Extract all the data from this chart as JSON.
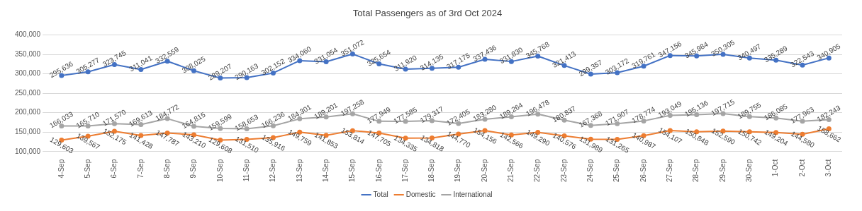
{
  "chart_data": {
    "type": "line",
    "title": "Total Passengers as of 3rd Oct 2024",
    "categories": [
      "4-Sep",
      "5-Sep",
      "6-Sep",
      "7-Sep",
      "8-Sep",
      "9-Sep",
      "10-Sep",
      "11-Sep",
      "12-Sep",
      "13-Sep",
      "14-Sep",
      "15-Sep",
      "16-Sep",
      "17-Sep",
      "18-Sep",
      "19-Sep",
      "20-Sep",
      "21-Sep",
      "22-Sep",
      "23-Sep",
      "24-Sep",
      "25-Sep",
      "26-Sep",
      "27-Sep",
      "28-Sep",
      "29-Sep",
      "30-Sep",
      "1-Oct",
      "2-Oct",
      "3-Oct"
    ],
    "series": [
      {
        "name": "Total",
        "color": "#4472c4",
        "values": [
          295636,
          305277,
          323745,
          311041,
          332559,
          308025,
          289207,
          290163,
          302152,
          334060,
          331054,
          351072,
          325654,
          311920,
          314135,
          317175,
          337436,
          331830,
          345768,
          321413,
          299357,
          303172,
          319761,
          347156,
          345984,
          350305,
          340497,
          335289,
          322543,
          340905
        ],
        "value_labels": [
          "295,636",
          "305,277",
          "323,745",
          "311,041",
          "332,559",
          "308,025",
          "289,207",
          "290,163",
          "302,152",
          "334,060",
          "331,054",
          "351,072",
          "325,654",
          "311,920",
          "314,135",
          "317,175",
          "337,436",
          "331,830",
          "345,768",
          "321,413",
          "299,357",
          "303,172",
          "319,761",
          "347,156",
          "345,984",
          "350,305",
          "340,497",
          "335,289",
          "322,543",
          "340,905"
        ]
      },
      {
        "name": "Domestic",
        "color": "#ed7d31",
        "values": [
          129603,
          139567,
          152175,
          141428,
          147787,
          143210,
          129608,
          131510,
          135916,
          149759,
          141853,
          153814,
          147705,
          134335,
          134818,
          144770,
          154156,
          142566,
          149290,
          140576,
          131989,
          131265,
          140987,
          154107,
          150848,
          152590,
          150742,
          149204,
          144580,
          158662
        ],
        "value_labels": [
          "129,603",
          "139,567",
          "152,175",
          "141,428",
          "147,787",
          "143,210",
          "129,608",
          "131,510",
          "135,916",
          "149,759",
          "141,853",
          "153,814",
          "147,705",
          "134,335",
          "134,818",
          "144,770",
          "154,156",
          "142,566",
          "149,290",
          "140,576",
          "131,989",
          "131,265",
          "140,987",
          "154,107",
          "150,848",
          "152,590",
          "150,742",
          "149,204",
          "144,580",
          "158,662"
        ]
      },
      {
        "name": "International",
        "color": "#a5a5a5",
        "values": [
          166033,
          165710,
          171570,
          169613,
          184772,
          164815,
          159599,
          158653,
          166236,
          184301,
          189201,
          197258,
          177949,
          177585,
          179317,
          172405,
          183280,
          189264,
          196478,
          180837,
          167368,
          171907,
          178774,
          193049,
          195136,
          197715,
          189755,
          186085,
          177963,
          182243
        ],
        "value_labels": [
          "166,033",
          "165,710",
          "171,570",
          "169,613",
          "184,772",
          "164,815",
          "159,599",
          "158,653",
          "166,236",
          "184,301",
          "189,201",
          "197,258",
          "177,949",
          "177,585",
          "179,317",
          "172,405",
          "183,280",
          "189,264",
          "196,478",
          "180,837",
          "167,368",
          "171,907",
          "178,774",
          "193,049",
          "195,136",
          "197,715",
          "189,755",
          "186,085",
          "177,963",
          "182,243"
        ]
      }
    ],
    "ylim": [
      100000,
      400000
    ],
    "yticks": [
      {
        "value": 100000,
        "label": "100,000"
      },
      {
        "value": 150000,
        "label": "150,000"
      },
      {
        "value": 200000,
        "label": "200,000"
      },
      {
        "value": 250000,
        "label": "250,000"
      },
      {
        "value": 300000,
        "label": "300,000"
      },
      {
        "value": 350000,
        "label": "350,000"
      },
      {
        "value": 400000,
        "label": "400,000"
      }
    ],
    "grid": "y",
    "legend": "bottom",
    "marker": "circle",
    "line_style": "solid"
  }
}
